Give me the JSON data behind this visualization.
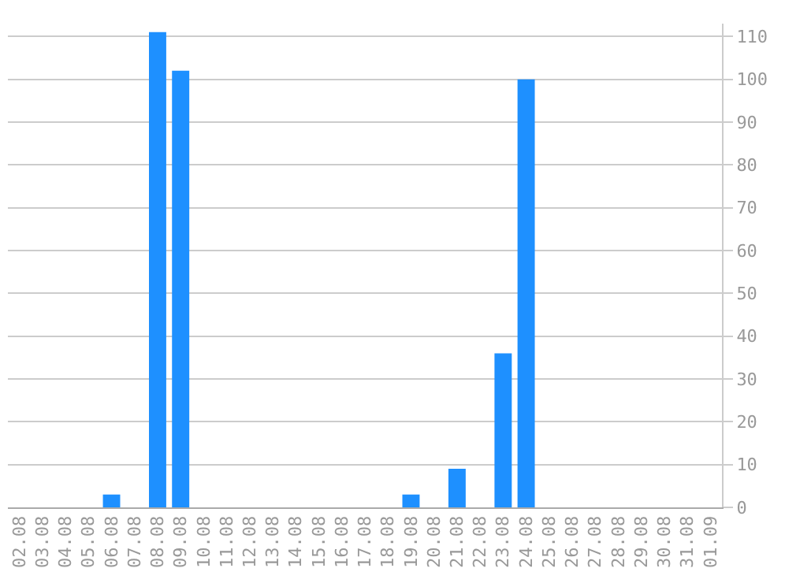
{
  "chart_data": {
    "type": "bar",
    "categories": [
      "02.08",
      "03.08",
      "04.08",
      "05.08",
      "06.08",
      "07.08",
      "08.08",
      "09.08",
      "10.08",
      "11.08",
      "12.08",
      "13.08",
      "14.08",
      "15.08",
      "16.08",
      "17.08",
      "18.08",
      "19.08",
      "20.08",
      "21.08",
      "22.08",
      "23.08",
      "24.08",
      "25.08",
      "26.08",
      "27.08",
      "28.08",
      "29.08",
      "30.08",
      "31.08",
      "01.09"
    ],
    "values": [
      0,
      0,
      0,
      0,
      3,
      0,
      111,
      102,
      0,
      0,
      0,
      0,
      0,
      0,
      0,
      0,
      0,
      3,
      0,
      9,
      0,
      36,
      100,
      0,
      0,
      0,
      0,
      0,
      0,
      0,
      0
    ],
    "color": "#1e90ff",
    "ylim": [
      0,
      113
    ],
    "yticks": [
      0,
      10,
      20,
      30,
      40,
      50,
      60,
      70,
      80,
      90,
      100,
      110
    ],
    "grid": "y"
  }
}
